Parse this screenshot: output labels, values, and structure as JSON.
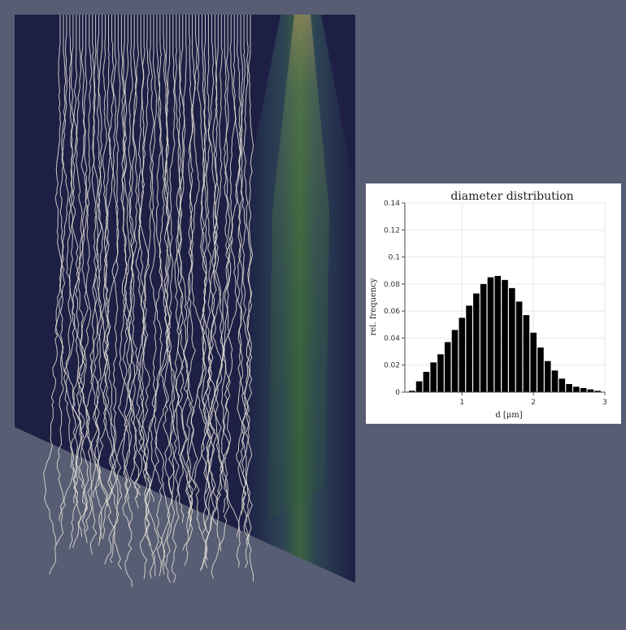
{
  "colors": {
    "background": "#575d73",
    "plane_dark": "#1e1f45",
    "particle_trail": "#e6e2d6",
    "beam_core": "#c9a36a",
    "beam_mid": "#3f6e3c",
    "bar_fill": "#000000",
    "panel_bg": "#ffffff"
  },
  "chart_data": {
    "type": "bar",
    "title": "diameter distribution",
    "xlabel": "d [μm]",
    "ylabel": "rel. frequency",
    "xlim": [
      0.2,
      3.0
    ],
    "ylim": [
      0,
      0.14
    ],
    "xticks": [
      "1",
      "2",
      "3"
    ],
    "yticks": [
      "0",
      "0.02",
      "0.04",
      "0.06",
      "0.08",
      "0.1",
      "0.12",
      "0.14"
    ],
    "grid": true,
    "bin_width": 0.1,
    "x": [
      0.3,
      0.4,
      0.5,
      0.6,
      0.7,
      0.8,
      0.9,
      1.0,
      1.1,
      1.2,
      1.3,
      1.4,
      1.5,
      1.6,
      1.7,
      1.8,
      1.9,
      2.0,
      2.1,
      2.2,
      2.3,
      2.4,
      2.5,
      2.6,
      2.7,
      2.8,
      2.9
    ],
    "values": [
      0.001,
      0.008,
      0.015,
      0.022,
      0.028,
      0.037,
      0.046,
      0.055,
      0.064,
      0.073,
      0.08,
      0.085,
      0.086,
      0.083,
      0.077,
      0.067,
      0.057,
      0.044,
      0.033,
      0.023,
      0.016,
      0.01,
      0.006,
      0.004,
      0.003,
      0.002,
      0.001
    ]
  }
}
